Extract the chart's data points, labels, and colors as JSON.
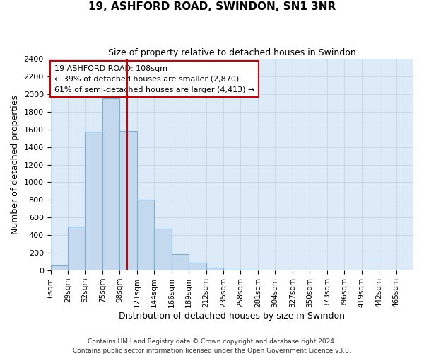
{
  "title_line1": "19, ASHFORD ROAD, SWINDON, SN1 3NR",
  "title_line2": "Size of property relative to detached houses in Swindon",
  "xlabel": "Distribution of detached houses by size in Swindon",
  "ylabel": "Number of detached properties",
  "bar_labels": [
    "6sqm",
    "29sqm",
    "52sqm",
    "75sqm",
    "98sqm",
    "121sqm",
    "144sqm",
    "166sqm",
    "189sqm",
    "212sqm",
    "235sqm",
    "258sqm",
    "281sqm",
    "304sqm",
    "327sqm",
    "350sqm",
    "373sqm",
    "396sqm",
    "419sqm",
    "442sqm",
    "465sqm"
  ],
  "bar_values": [
    55,
    500,
    1575,
    1950,
    1585,
    800,
    475,
    185,
    90,
    30,
    5,
    5,
    2,
    0,
    0,
    0,
    0,
    0,
    0,
    0,
    0
  ],
  "bar_color": "#c5d9ee",
  "bar_edge_color": "#7bafd4",
  "vline_x": 108,
  "vline_color": "#cc0000",
  "annotation_text": "19 ASHFORD ROAD: 108sqm\n← 39% of detached houses are smaller (2,870)\n61% of semi-detached houses are larger (4,413) →",
  "annotation_box_facecolor": "#ffffff",
  "annotation_box_edgecolor": "#cc0000",
  "ylim": [
    0,
    2400
  ],
  "yticks": [
    0,
    200,
    400,
    600,
    800,
    1000,
    1200,
    1400,
    1600,
    1800,
    2000,
    2200,
    2400
  ],
  "grid_color": "#c8d8e8",
  "background_color": "#ddeaf7",
  "footer_line1": "Contains HM Land Registry data © Crown copyright and database right 2024.",
  "footer_line2": "Contains public sector information licensed under the Open Government Licence v3.0.",
  "bin_width": 23
}
